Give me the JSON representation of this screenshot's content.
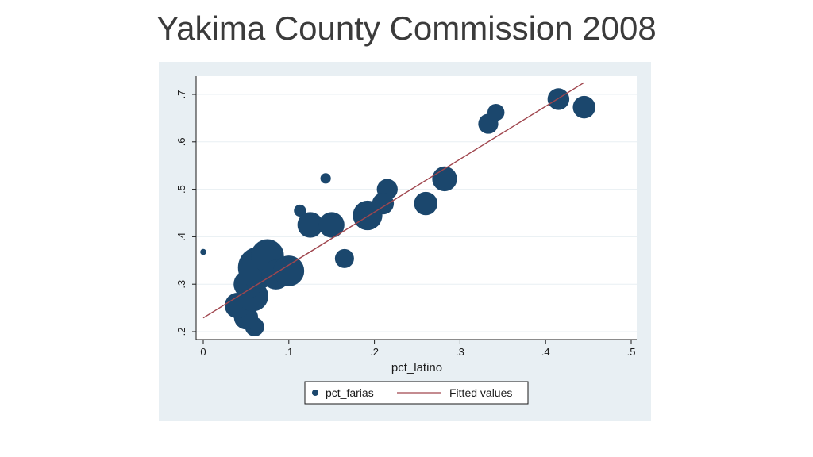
{
  "slide": {
    "title": "Yakima County Commission 2008"
  },
  "colors": {
    "points": "#1b476d",
    "fit_line": "#a0464e",
    "plot_bg": "#ffffff",
    "figure_bg": "#e8eff3",
    "grid": "#e8eff3"
  },
  "chart_data": {
    "type": "scatter",
    "xlabel": "pct_latino",
    "ylabel": "",
    "xlim": [
      0,
      0.5
    ],
    "ylim": [
      0.2,
      0.7
    ],
    "xticks": [
      0,
      0.1,
      0.2,
      0.3,
      0.4,
      0.5
    ],
    "xtick_labels": [
      "0",
      ".1",
      ".2",
      ".3",
      ".4",
      ".5"
    ],
    "yticks": [
      0.2,
      0.3,
      0.4,
      0.5,
      0.6,
      0.7
    ],
    "ytick_labels": [
      ".2",
      ".3",
      ".4",
      ".5",
      ".6",
      ".7"
    ],
    "grid": true,
    "legend_position": "bottom",
    "series": [
      {
        "name": "pct_farias",
        "type": "scatter",
        "points": [
          {
            "x": 0.0,
            "y": 0.368,
            "weight": 1
          },
          {
            "x": 0.143,
            "y": 0.523,
            "weight": 3
          },
          {
            "x": 0.113,
            "y": 0.455,
            "weight": 4
          },
          {
            "x": 0.165,
            "y": 0.354,
            "weight": 10
          },
          {
            "x": 0.215,
            "y": 0.5,
            "weight": 12
          },
          {
            "x": 0.21,
            "y": 0.47,
            "weight": 13
          },
          {
            "x": 0.192,
            "y": 0.445,
            "weight": 24
          },
          {
            "x": 0.125,
            "y": 0.425,
            "weight": 18
          },
          {
            "x": 0.15,
            "y": 0.425,
            "weight": 18
          },
          {
            "x": 0.26,
            "y": 0.47,
            "weight": 15
          },
          {
            "x": 0.282,
            "y": 0.522,
            "weight": 17
          },
          {
            "x": 0.333,
            "y": 0.638,
            "weight": 11
          },
          {
            "x": 0.342,
            "y": 0.662,
            "weight": 8
          },
          {
            "x": 0.415,
            "y": 0.69,
            "weight": 13
          },
          {
            "x": 0.445,
            "y": 0.673,
            "weight": 14
          },
          {
            "x": 0.06,
            "y": 0.21,
            "weight": 10
          },
          {
            "x": 0.05,
            "y": 0.23,
            "weight": 16
          },
          {
            "x": 0.04,
            "y": 0.255,
            "weight": 18
          },
          {
            "x": 0.058,
            "y": 0.275,
            "weight": 26
          },
          {
            "x": 0.052,
            "y": 0.3,
            "weight": 22
          },
          {
            "x": 0.065,
            "y": 0.335,
            "weight": 48
          },
          {
            "x": 0.075,
            "y": 0.36,
            "weight": 30
          },
          {
            "x": 0.085,
            "y": 0.32,
            "weight": 24
          },
          {
            "x": 0.1,
            "y": 0.328,
            "weight": 26
          }
        ]
      },
      {
        "name": "Fitted values",
        "type": "line",
        "points": [
          {
            "x": 0.0,
            "y": 0.229
          },
          {
            "x": 0.445,
            "y": 0.725
          }
        ]
      }
    ]
  }
}
